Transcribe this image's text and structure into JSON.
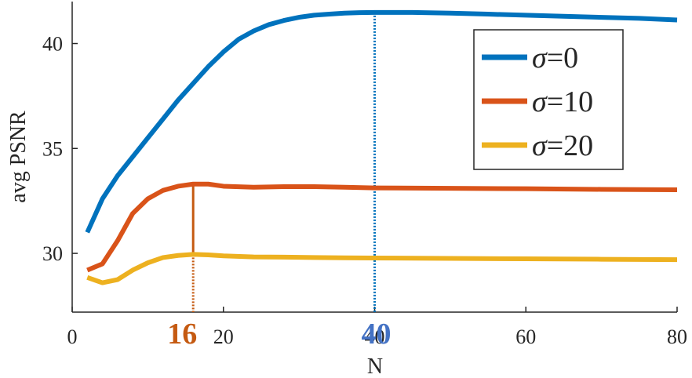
{
  "chart_data": {
    "type": "line",
    "xlabel": "N",
    "ylabel": "avg PSNR",
    "xlim": [
      0,
      80
    ],
    "ylim": [
      27.2,
      42
    ],
    "xticks": [
      0,
      20,
      40,
      60,
      80
    ],
    "yticks": [
      30,
      35,
      40
    ],
    "grid": false,
    "legend_position": "top-right",
    "series": [
      {
        "name": "σ=0",
        "color": "#0072BD",
        "x": [
          2,
          4,
          6,
          8,
          10,
          12,
          14,
          16,
          18,
          20,
          22,
          24,
          26,
          28,
          30,
          32,
          34,
          36,
          38,
          40,
          45,
          50,
          55,
          60,
          65,
          70,
          75,
          80
        ],
        "y": [
          31.0,
          32.6,
          33.7,
          34.6,
          35.5,
          36.4,
          37.3,
          38.1,
          38.9,
          39.6,
          40.2,
          40.6,
          40.9,
          41.1,
          41.25,
          41.35,
          41.4,
          41.45,
          41.47,
          41.48,
          41.48,
          41.45,
          41.4,
          41.35,
          41.3,
          41.25,
          41.2,
          41.12
        ]
      },
      {
        "name": "σ=10",
        "color": "#D95319",
        "x": [
          2,
          4,
          6,
          8,
          10,
          12,
          14,
          16,
          18,
          20,
          24,
          28,
          32,
          36,
          40,
          50,
          60,
          70,
          80
        ],
        "y": [
          29.2,
          29.5,
          30.6,
          31.9,
          32.6,
          33.0,
          33.2,
          33.3,
          33.3,
          33.2,
          33.15,
          33.18,
          33.18,
          33.15,
          33.12,
          33.1,
          33.08,
          33.05,
          33.03
        ]
      },
      {
        "name": "σ=20",
        "color": "#EDB120",
        "x": [
          2,
          4,
          6,
          8,
          10,
          12,
          14,
          16,
          18,
          20,
          24,
          28,
          32,
          36,
          40,
          50,
          60,
          70,
          80
        ],
        "y": [
          28.85,
          28.6,
          28.75,
          29.2,
          29.55,
          29.8,
          29.9,
          29.95,
          29.93,
          29.88,
          29.83,
          29.82,
          29.8,
          29.79,
          29.78,
          29.76,
          29.74,
          29.72,
          29.7
        ]
      }
    ],
    "annotations": [
      {
        "label": "16",
        "x": 16,
        "y_top": 33.3,
        "color": "#C55A11",
        "solid_to": 29.95,
        "series": "σ=10"
      },
      {
        "label": "40",
        "x": 40,
        "y_top": 41.48,
        "color": "#4472C4",
        "line_color": "#0072BD",
        "series": "σ=0"
      }
    ]
  }
}
